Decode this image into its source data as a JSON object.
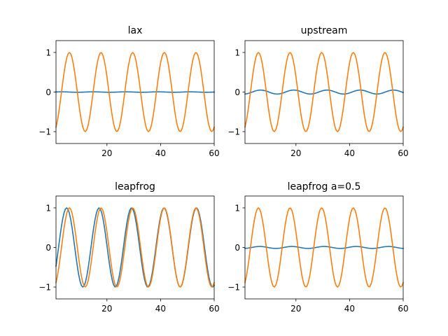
{
  "chart_data": [
    {
      "type": "line",
      "title": "lax",
      "xlim": [
        1,
        60
      ],
      "ylim": [
        -1.3,
        1.3
      ],
      "xticks": [
        20,
        40,
        60
      ],
      "yticks": [
        -1,
        0,
        1
      ],
      "x_range": [
        1,
        60
      ],
      "series": [
        {
          "color": "#1f77b4",
          "function": "sin",
          "amplitude": 0.005,
          "period": 12,
          "phase_x": 0
        },
        {
          "color": "#ff7f0e",
          "function": "sin",
          "amplitude": 1.0,
          "period": 11.8,
          "phase_x": 3.05
        }
      ]
    },
    {
      "type": "line",
      "title": "upstream",
      "xlim": [
        1,
        60
      ],
      "ylim": [
        -1.3,
        1.3
      ],
      "xticks": [
        20,
        40,
        60
      ],
      "yticks": [
        -1,
        0,
        1
      ],
      "x_range": [
        1,
        60
      ],
      "series": [
        {
          "color": "#1f77b4",
          "function": "sin",
          "amplitude": 0.05,
          "period": 12.4,
          "phase_x": 3.7
        },
        {
          "color": "#ff7f0e",
          "function": "sin",
          "amplitude": 1.0,
          "period": 11.8,
          "phase_x": 3.05
        }
      ]
    },
    {
      "type": "line",
      "title": "leapfrog",
      "xlim": [
        1,
        60
      ],
      "ylim": [
        -1.3,
        1.3
      ],
      "xticks": [
        20,
        40,
        60
      ],
      "yticks": [
        -1,
        0,
        1
      ],
      "x_range": [
        1,
        60
      ],
      "series": [
        {
          "color": "#1f77b4",
          "function": "sin",
          "amplitude": 1.0,
          "period": 12.1,
          "phase_x": 1.95
        },
        {
          "color": "#ff7f0e",
          "function": "sin",
          "amplitude": 1.0,
          "period": 11.8,
          "phase_x": 3.05
        }
      ]
    },
    {
      "type": "line",
      "title": "leapfrog a=0.5",
      "xlim": [
        1,
        60
      ],
      "ylim": [
        -1.3,
        1.3
      ],
      "xticks": [
        20,
        40,
        60
      ],
      "yticks": [
        -1,
        0,
        1
      ],
      "x_range": [
        1,
        60
      ],
      "series": [
        {
          "color": "#1f77b4",
          "function": "sin",
          "amplitude": 0.025,
          "period": 12.0,
          "phase_x": 3.5
        },
        {
          "color": "#ff7f0e",
          "function": "sin",
          "amplitude": 1.0,
          "period": 11.8,
          "phase_x": 3.05
        }
      ]
    }
  ]
}
